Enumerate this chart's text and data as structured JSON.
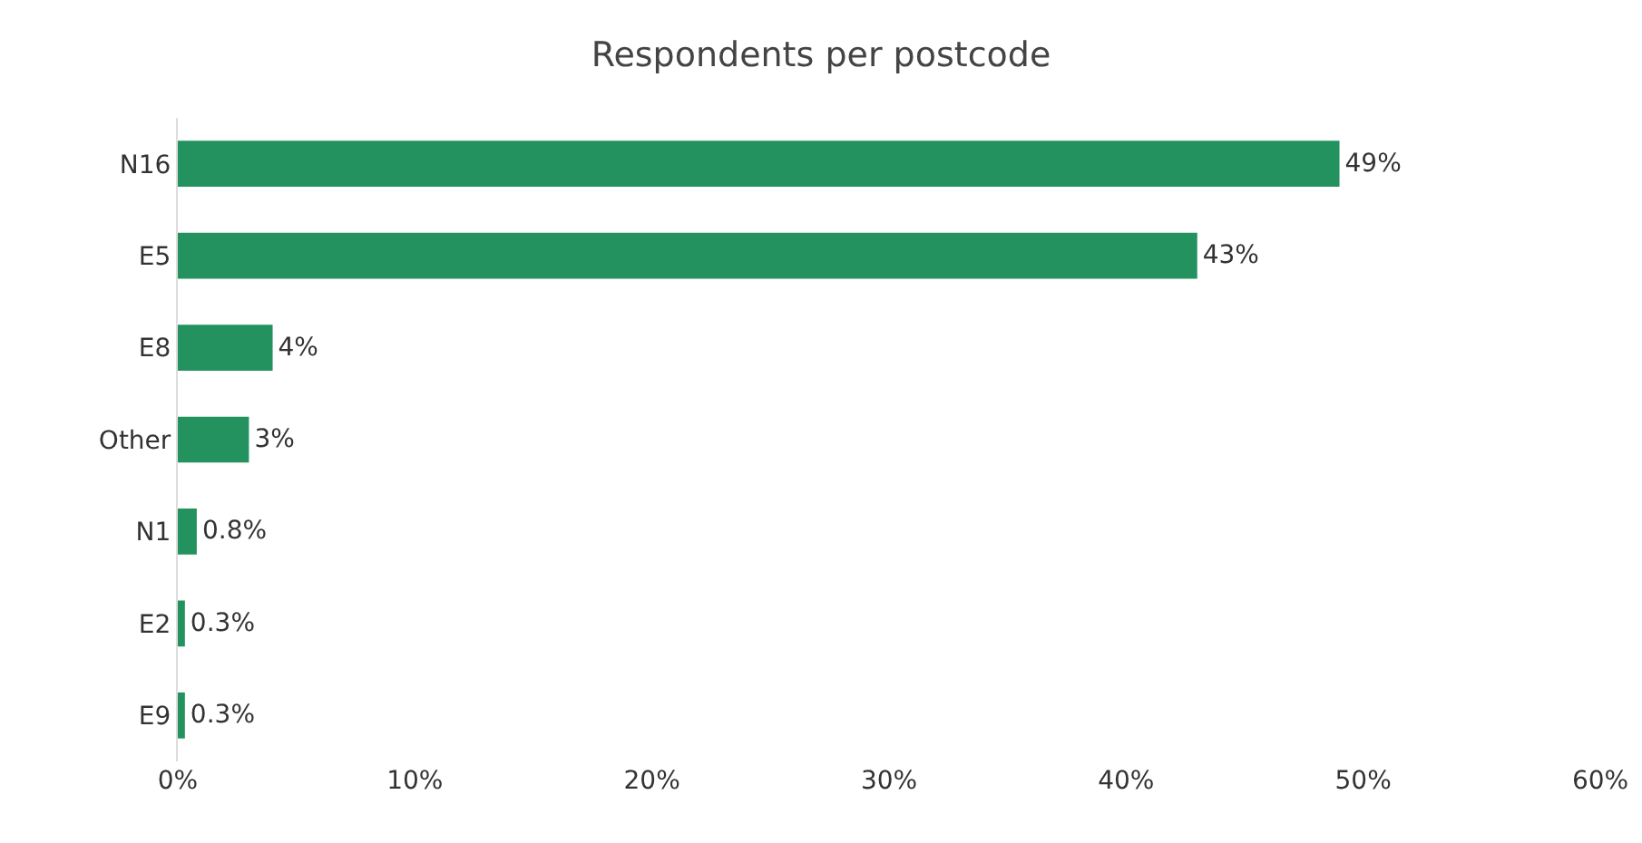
{
  "chart_data": {
    "type": "bar",
    "orientation": "horizontal",
    "title": "Respondents per postcode",
    "categories": [
      "N16",
      "E5",
      "E8",
      "Other",
      "N1",
      "E2",
      "E9"
    ],
    "values": [
      49,
      43,
      4,
      3,
      0.8,
      0.3,
      0.3
    ],
    "value_labels": [
      "49%",
      "43%",
      "4%",
      "3%",
      "0.8%",
      "0.3%",
      "0.3%"
    ],
    "color": "#23925f",
    "xlim": [
      0,
      60
    ],
    "xticks": [
      {
        "value": 0,
        "label": "0%"
      },
      {
        "value": 10,
        "label": "10%"
      },
      {
        "value": 20,
        "label": "20%"
      },
      {
        "value": 30,
        "label": "30%"
      },
      {
        "value": 40,
        "label": "40%"
      },
      {
        "value": 50,
        "label": "50%"
      },
      {
        "value": 60,
        "label": "60%"
      }
    ],
    "grid": false
  }
}
